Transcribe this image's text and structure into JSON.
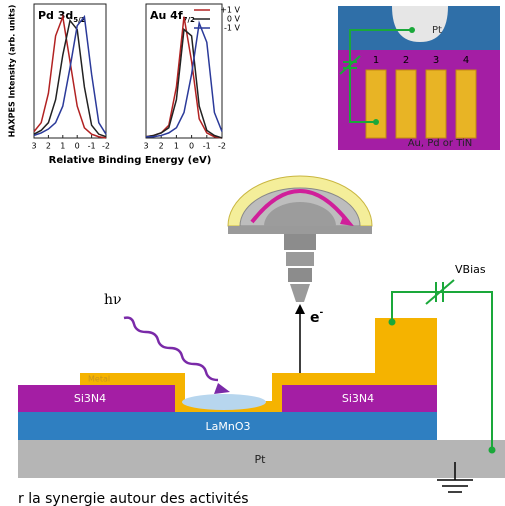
{
  "chart_data": [
    {
      "type": "line",
      "title": "Pd 3d",
      "title_subscript": "5/2",
      "ylabel": "HAXPES Intensity (arb. units)",
      "xlabel": "Relative Binding Energy (eV)",
      "x": [
        3,
        2.5,
        2,
        1.5,
        1,
        0.5,
        0,
        -0.5,
        -1,
        -1.5,
        -2
      ],
      "xlim": [
        3,
        -2
      ],
      "xticks": [
        3,
        2,
        1,
        0,
        -1,
        -2
      ],
      "ylim": [
        0,
        1.05
      ],
      "series": [
        {
          "color": "#b22222",
          "values": [
            0.05,
            0.12,
            0.35,
            0.8,
            0.95,
            0.6,
            0.25,
            0.08,
            0.03,
            0.01,
            0
          ]
        },
        {
          "color": "#222222",
          "values": [
            0.03,
            0.06,
            0.12,
            0.3,
            0.65,
            0.92,
            0.85,
            0.4,
            0.1,
            0.03,
            0.01
          ]
        },
        {
          "color": "#2b3a9a",
          "values": [
            0.02,
            0.04,
            0.07,
            0.12,
            0.25,
            0.55,
            0.88,
            0.95,
            0.5,
            0.12,
            0.03
          ]
        }
      ]
    },
    {
      "type": "line",
      "title": "Au 4f",
      "title_subscript": "7/2",
      "legend": "upper right",
      "x": [
        3,
        2.5,
        2,
        1.5,
        1,
        0.5,
        0,
        -0.5,
        -1,
        -1.5,
        -2
      ],
      "xlim": [
        3,
        -2
      ],
      "xticks": [
        3,
        2,
        1,
        0,
        -1,
        -2
      ],
      "ylim": [
        0,
        1.05
      ],
      "series": [
        {
          "name": "+1 V",
          "color": "#b22222",
          "values": [
            0.01,
            0.02,
            0.04,
            0.1,
            0.4,
            0.95,
            0.6,
            0.15,
            0.04,
            0.01,
            0
          ]
        },
        {
          "name": "0 V",
          "color": "#222222",
          "values": [
            0.01,
            0.02,
            0.04,
            0.08,
            0.3,
            0.85,
            0.8,
            0.25,
            0.06,
            0.02,
            0
          ]
        },
        {
          "name": "-1 V",
          "color": "#2b3a9a",
          "values": [
            0.01,
            0.01,
            0.02,
            0.04,
            0.08,
            0.2,
            0.5,
            0.9,
            0.75,
            0.2,
            0.05
          ]
        }
      ]
    }
  ],
  "diagram": {
    "device": {
      "electrode": "Pt",
      "pillars": [
        "1",
        "2",
        "3",
        "4"
      ],
      "pillar_material": "Au, Pd or TiN"
    },
    "photon": "hν",
    "electron": "e",
    "electron_sup": "-",
    "bias": "VBias",
    "layers": {
      "metal": "Metal",
      "insulator_left": "Si3N4",
      "insulator_right": "Si3N4",
      "oxide": "LaMnO3",
      "substrate": "Pt"
    },
    "caption": "r la synergie autour des activités"
  }
}
